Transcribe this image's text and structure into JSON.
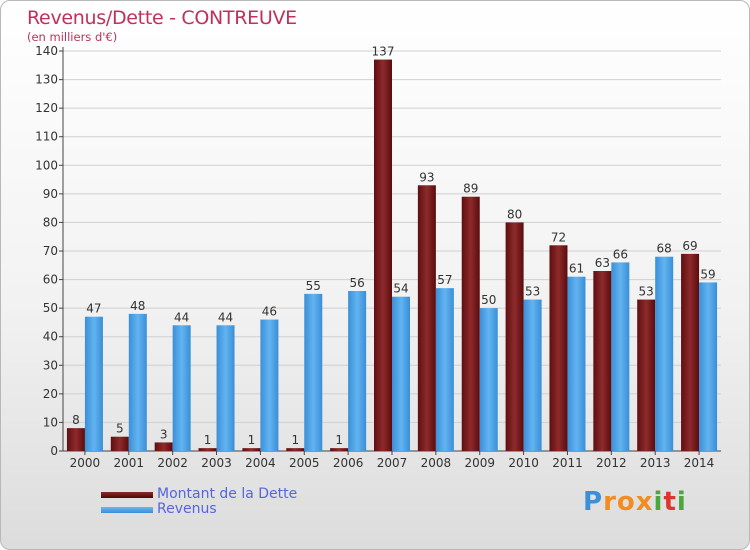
{
  "chart_data": {
    "type": "bar",
    "title": "Revenus/Dette - CONTREUVE",
    "subtitle": "(en milliers d'€)",
    "categories": [
      "2000",
      "2001",
      "2002",
      "2003",
      "2004",
      "2005",
      "2006",
      "2007",
      "2008",
      "2009",
      "2010",
      "2011",
      "2012",
      "2013",
      "2014"
    ],
    "series": [
      {
        "name": "Montant de la Dette",
        "color": "#7a1c1c",
        "values": [
          8,
          5,
          3,
          1,
          1,
          1,
          1,
          137,
          93,
          89,
          80,
          72,
          63,
          53,
          69
        ]
      },
      {
        "name": "Revenus",
        "color": "#4aa3e8",
        "values": [
          47,
          48,
          44,
          44,
          46,
          55,
          56,
          54,
          57,
          50,
          53,
          61,
          66,
          68,
          59
        ]
      }
    ],
    "ylim": [
      0,
      140
    ],
    "yticks": [
      0,
      10,
      20,
      30,
      40,
      50,
      60,
      70,
      80,
      90,
      100,
      110,
      120,
      130,
      140
    ],
    "grid": true,
    "legend_position": "bottom-left"
  },
  "logo": {
    "text": "Proxiti",
    "letters": [
      "P",
      "r",
      "o",
      "x",
      "i",
      "t",
      "i"
    ],
    "colors": [
      "#3a8fd6",
      "#f28c1e",
      "#f28c1e",
      "#f28c1e",
      "#4aa83a",
      "#e0342e",
      "#4aa83a"
    ]
  }
}
